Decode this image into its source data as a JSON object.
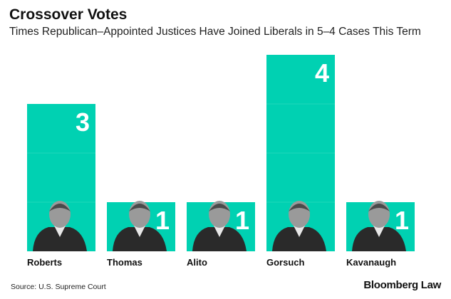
{
  "chart_data": {
    "type": "bar",
    "title": "Crossover Votes",
    "subtitle": "Times Republican-Appointed Justices Have Joined Liberals in 5–4 Cases This Term",
    "categories": [
      "Roberts",
      "Thomas",
      "Alito",
      "Gorsuch",
      "Kavanaugh"
    ],
    "values": [
      3,
      1,
      1,
      4,
      1
    ],
    "value_labels": [
      "3",
      "1",
      "1",
      "4",
      "1"
    ],
    "xlabel": "",
    "ylabel": "",
    "ylim": [
      0,
      4
    ],
    "grid": false,
    "bar_color": "#00d1b2",
    "label_color": "#ffffff"
  },
  "title": "Crossover Votes",
  "subtitle": "Times Republican–Appointed Justices Have Joined Liberals in 5–4 Cases This Term",
  "footer": {
    "source": "Source: U.S. Supreme Court",
    "brand": "Bloomberg Law"
  }
}
